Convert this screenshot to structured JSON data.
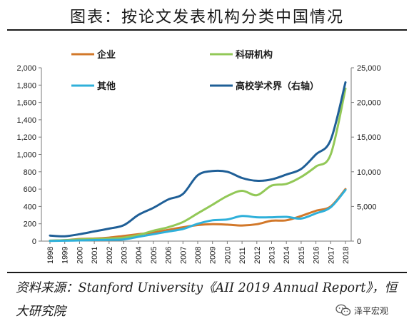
{
  "title": "图表：按论文发表机构分类中国情况",
  "source_note": "资料来源：Stanford University《AII 2019 Annual Report》，恒大研究院",
  "watermark": {
    "label": "泽平宏观",
    "icon": "wechat-icon"
  },
  "chart_data": {
    "type": "line",
    "title": "",
    "xlabel": "",
    "ylabel": "",
    "y2label": "",
    "grid": false,
    "legend_position": "top",
    "x": [
      "1998",
      "1999",
      "2000",
      "2001",
      "2002",
      "2003",
      "2004",
      "2005",
      "2006",
      "2007",
      "2008",
      "2009",
      "2010",
      "2011",
      "2012",
      "2013",
      "2014",
      "2015",
      "2016",
      "2017",
      "2018"
    ],
    "left_axis": {
      "min": 0,
      "max": 2000,
      "ticks": [
        "0",
        "200",
        "400",
        "600",
        "800",
        "1,000",
        "1,200",
        "1,400",
        "1,600",
        "1,800",
        "2,000"
      ]
    },
    "right_axis": {
      "min": 0,
      "max": 25000,
      "ticks": [
        "0",
        "5,000",
        "10,000",
        "15,000",
        "20,000",
        "25,000"
      ]
    },
    "series": [
      {
        "name": "企业",
        "axis": "left",
        "color": "#d2782a",
        "values": [
          5,
          10,
          25,
          30,
          40,
          60,
          80,
          100,
          130,
          160,
          185,
          195,
          190,
          180,
          195,
          235,
          240,
          290,
          350,
          400,
          600
        ]
      },
      {
        "name": "科研机构",
        "axis": "left",
        "color": "#92c857",
        "values": [
          5,
          10,
          20,
          25,
          30,
          40,
          70,
          120,
          160,
          220,
          320,
          420,
          520,
          580,
          530,
          640,
          660,
          740,
          860,
          1000,
          1760
        ]
      },
      {
        "name": "其他",
        "axis": "left",
        "color": "#2fb0da",
        "values": [
          2,
          5,
          8,
          12,
          15,
          20,
          50,
          80,
          110,
          140,
          200,
          240,
          250,
          290,
          275,
          275,
          280,
          260,
          320,
          390,
          590
        ]
      },
      {
        "name": "高校学术界（右轴）",
        "axis": "right",
        "color": "#1f5f97",
        "values": [
          800,
          700,
          1000,
          1400,
          1800,
          2300,
          3800,
          4800,
          6000,
          6800,
          9500,
          10100,
          10000,
          9100,
          8700,
          8900,
          9600,
          10400,
          12500,
          14600,
          22900
        ]
      }
    ]
  }
}
